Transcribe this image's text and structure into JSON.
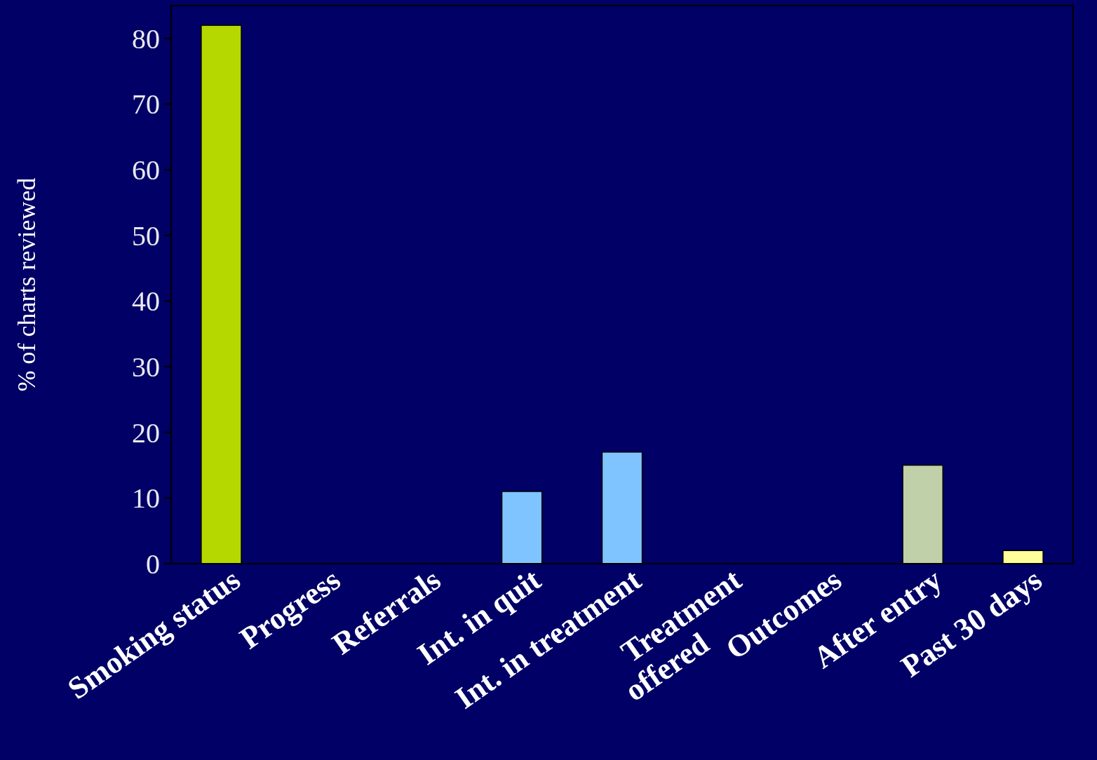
{
  "chart_data": {
    "type": "bar",
    "ylabel": "%  of charts reviewed",
    "categories": [
      "Smoking status",
      "Progress",
      "Referrals",
      "Int. in quit",
      "Int. in treatment",
      "Treatment\noffered",
      "Outcomes",
      "After entry",
      "Past 30 days"
    ],
    "values": [
      82,
      0,
      0,
      11,
      17,
      0,
      0,
      15,
      2
    ],
    "colors": [
      "#b5d900",
      "#b5d900",
      "#80c4ff",
      "#80c4ff",
      "#80c4ff",
      "#80c4ff",
      "#c0d0a8",
      "#c0d0a8",
      "#ffff99"
    ],
    "ylim": [
      0,
      85
    ],
    "yticks": [
      0,
      10,
      20,
      30,
      40,
      50,
      60,
      70,
      80
    ],
    "grid": false
  }
}
